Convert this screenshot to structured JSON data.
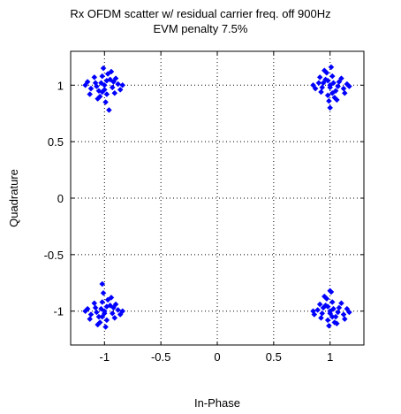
{
  "chart_data": {
    "type": "scatter",
    "title_lines": [
      "Rx OFDM scatter w/ residual carrier freq. off 900Hz",
      "EVM penalty 7.5%"
    ],
    "xlabel": "In-Phase",
    "ylabel": "Quadrature",
    "xlim": [
      -1.3,
      1.3
    ],
    "ylim": [
      -1.3,
      1.3
    ],
    "x_ticks": [
      -1,
      -0.5,
      0,
      0.5,
      1
    ],
    "x_tick_labels": [
      "-1",
      "-0.5",
      "0",
      "0.5",
      "1"
    ],
    "y_ticks": [
      1,
      0.5,
      0,
      -0.5,
      -1
    ],
    "y_tick_labels": [
      "1",
      "0.5",
      "0",
      "-0.5",
      "-1"
    ],
    "grid": "dotted",
    "marker": "diamond",
    "color": "#0000ff",
    "series": [
      {
        "points": [
          [
            -1.0,
            1.0
          ],
          [
            -0.95,
            1.05
          ],
          [
            -1.05,
            0.95
          ],
          [
            -0.98,
            0.92
          ],
          [
            -1.08,
            1.02
          ],
          [
            -0.93,
            0.98
          ],
          [
            -1.02,
            1.08
          ],
          [
            -0.88,
            1.01
          ],
          [
            -1.12,
            0.97
          ],
          [
            -0.97,
            1.1
          ],
          [
            -1.04,
            0.9
          ],
          [
            -0.91,
            0.93
          ],
          [
            -1.09,
            1.07
          ],
          [
            -0.99,
            0.85
          ],
          [
            -0.94,
            1.12
          ],
          [
            -1.15,
            1.03
          ],
          [
            -0.86,
            0.96
          ],
          [
            -1.01,
            1.15
          ],
          [
            -1.06,
            0.88
          ],
          [
            -0.9,
            1.06
          ],
          [
            -1.13,
            0.92
          ],
          [
            -0.96,
            0.78
          ],
          [
            -1.0,
            0.96
          ],
          [
            -1.03,
            1.02
          ],
          [
            -0.92,
            1.03
          ],
          [
            -1.07,
            0.99
          ],
          [
            -0.84,
            1.0
          ],
          [
            -1.17,
            1.0
          ],
          [
            -0.98,
            1.04
          ],
          [
            -1.02,
            0.94
          ]
        ]
      },
      {
        "points": [
          [
            1.0,
            1.0
          ],
          [
            0.96,
            1.05
          ],
          [
            1.05,
            0.95
          ],
          [
            0.98,
            0.91
          ],
          [
            1.08,
            1.03
          ],
          [
            0.93,
            0.98
          ],
          [
            1.02,
            1.08
          ],
          [
            0.9,
            1.02
          ],
          [
            1.12,
            0.97
          ],
          [
            0.97,
            1.11
          ],
          [
            1.04,
            0.89
          ],
          [
            0.92,
            0.94
          ],
          [
            1.1,
            1.06
          ],
          [
            0.99,
            0.86
          ],
          [
            0.95,
            1.13
          ],
          [
            1.15,
            1.01
          ],
          [
            0.87,
            0.97
          ],
          [
            1.01,
            1.16
          ],
          [
            1.06,
            0.87
          ],
          [
            0.91,
            1.07
          ],
          [
            1.13,
            0.93
          ],
          [
            1.0,
            0.8
          ],
          [
            1.0,
            0.98
          ],
          [
            1.03,
            1.02
          ],
          [
            0.94,
            1.02
          ],
          [
            1.07,
            0.99
          ],
          [
            0.85,
            1.0
          ],
          [
            1.17,
            0.99
          ],
          [
            0.98,
            1.04
          ],
          [
            1.02,
            0.93
          ]
        ]
      },
      {
        "points": [
          [
            -1.0,
            -1.0
          ],
          [
            -0.95,
            -0.95
          ],
          [
            -1.05,
            -1.05
          ],
          [
            -0.98,
            -1.08
          ],
          [
            -1.08,
            -0.97
          ],
          [
            -0.93,
            -1.02
          ],
          [
            -1.02,
            -0.92
          ],
          [
            -0.88,
            -0.99
          ],
          [
            -1.12,
            -1.03
          ],
          [
            -0.97,
            -0.9
          ],
          [
            -1.04,
            -1.1
          ],
          [
            -0.91,
            -1.06
          ],
          [
            -1.09,
            -0.93
          ],
          [
            -0.99,
            -1.14
          ],
          [
            -0.94,
            -0.88
          ],
          [
            -1.15,
            -0.98
          ],
          [
            -0.86,
            -1.03
          ],
          [
            -1.01,
            -0.84
          ],
          [
            -1.06,
            -1.12
          ],
          [
            -0.9,
            -0.94
          ],
          [
            -1.13,
            -1.07
          ],
          [
            -1.02,
            -0.76
          ],
          [
            -1.0,
            -1.02
          ],
          [
            -1.03,
            -0.98
          ],
          [
            -0.92,
            -0.97
          ],
          [
            -1.07,
            -1.01
          ],
          [
            -0.84,
            -1.0
          ],
          [
            -1.17,
            -1.0
          ],
          [
            -0.98,
            -0.96
          ],
          [
            -1.02,
            -1.05
          ]
        ]
      },
      {
        "points": [
          [
            1.0,
            -1.0
          ],
          [
            0.96,
            -0.95
          ],
          [
            1.05,
            -1.05
          ],
          [
            0.98,
            -1.08
          ],
          [
            1.08,
            -0.97
          ],
          [
            0.93,
            -1.02
          ],
          [
            1.02,
            -0.92
          ],
          [
            0.89,
            -0.99
          ],
          [
            1.12,
            -1.03
          ],
          [
            0.97,
            -0.89
          ],
          [
            1.04,
            -1.1
          ],
          [
            0.92,
            -1.06
          ],
          [
            1.1,
            -0.93
          ],
          [
            0.99,
            -1.13
          ],
          [
            0.95,
            -0.87
          ],
          [
            1.15,
            -0.98
          ],
          [
            0.86,
            -1.03
          ],
          [
            1.01,
            -0.83
          ],
          [
            1.06,
            -1.11
          ],
          [
            0.91,
            -0.94
          ],
          [
            1.13,
            -1.07
          ],
          [
            1.0,
            -0.82
          ],
          [
            1.0,
            -1.02
          ],
          [
            1.03,
            -0.98
          ],
          [
            0.94,
            -0.97
          ],
          [
            1.07,
            -1.01
          ],
          [
            0.85,
            -1.0
          ],
          [
            1.17,
            -1.01
          ],
          [
            0.98,
            -0.96
          ],
          [
            1.02,
            -1.05
          ]
        ]
      }
    ]
  }
}
